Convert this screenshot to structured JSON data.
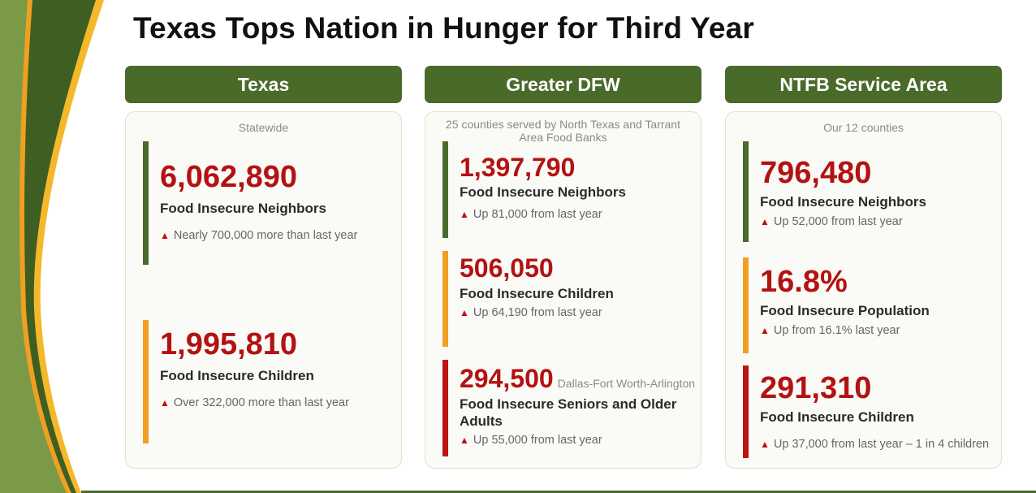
{
  "title": "Texas Tops Nation in Hunger for Third Year",
  "colors": {
    "green": "#4a6a2a",
    "red": "#b31212",
    "orange": "#f0a020",
    "light_green": "#7a9a48",
    "gold": "#f5b82a"
  },
  "columns": [
    {
      "header": "Texas",
      "subtitle": "Statewide",
      "stats": [
        {
          "value": "6,062,890",
          "label": "Food Insecure Neighbors",
          "change": "Nearly 700,000 more than last year",
          "bar": "green"
        },
        {
          "value": "1,995,810",
          "label": "Food Insecure Children",
          "change": "Over 322,000 more than last year",
          "bar": "orange"
        }
      ]
    },
    {
      "header": "Greater DFW",
      "subtitle": "25 counties served by North Texas and Tarrant Area Food Banks",
      "stats": [
        {
          "value": "1,397,790",
          "label": "Food Insecure Neighbors",
          "change": "Up 81,000 from last year",
          "bar": "green"
        },
        {
          "value": "506,050",
          "label": "Food Insecure Children",
          "change": "Up 64,190 from last year",
          "bar": "orange"
        },
        {
          "value": "294,500",
          "note": "Dallas-Fort Worth-Arlington",
          "label": "Food Insecure Seniors and Older Adults",
          "change": "Up 55,000 from last year",
          "bar": "red"
        }
      ]
    },
    {
      "header": "NTFB Service Area",
      "subtitle": "Our 12 counties",
      "stats": [
        {
          "value": "796,480",
          "label": "Food Insecure Neighbors",
          "change": "Up 52,000 from last year",
          "bar": "green"
        },
        {
          "value": "16.8%",
          "label": "Food Insecure Population",
          "change": "Up from 16.1% last year",
          "bar": "orange"
        },
        {
          "value": "291,310",
          "label": "Food Insecure Children",
          "change": "Up 37,000 from last year – 1 in 4 children",
          "bar": "red"
        }
      ]
    }
  ],
  "triangle_icon": "▲"
}
